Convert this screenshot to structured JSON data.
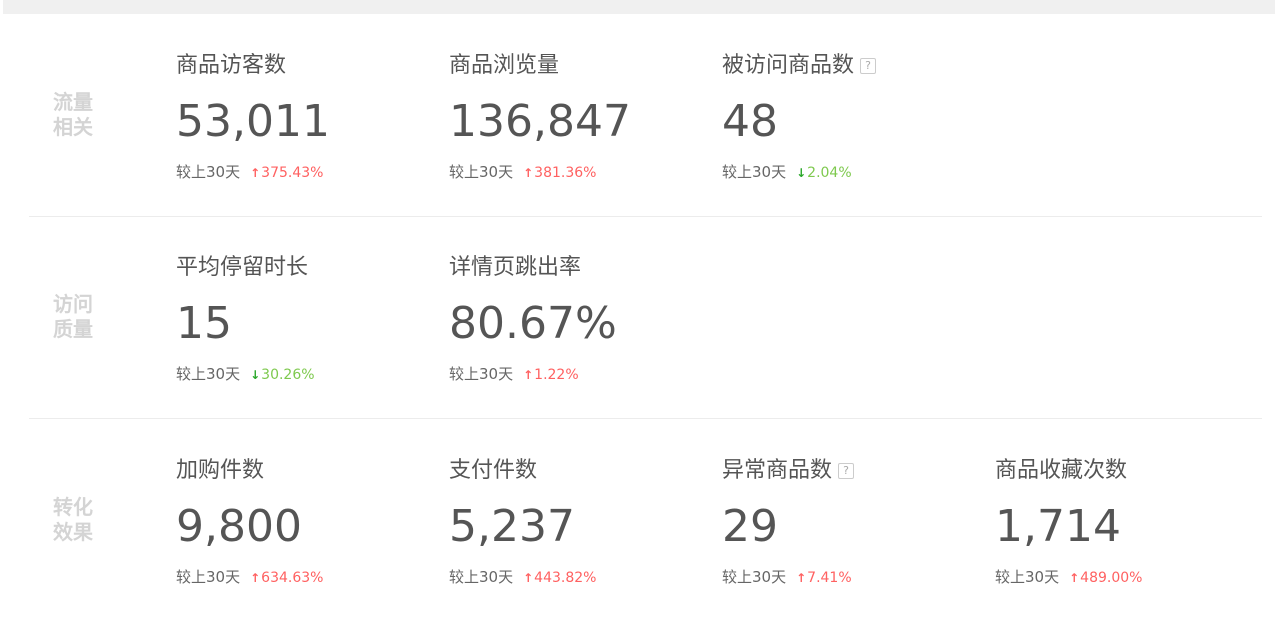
{
  "compare_label": "较上30天",
  "colors": {
    "up": "#ff6161",
    "down": "#7ec94e"
  },
  "sections": [
    {
      "category": [
        "流量",
        "相关"
      ],
      "metrics": [
        {
          "name": "商品访客数",
          "value": "53,011",
          "change": "375.43%",
          "direction": "up",
          "help": false
        },
        {
          "name": "商品浏览量",
          "value": "136,847",
          "change": "381.36%",
          "direction": "up",
          "help": false
        },
        {
          "name": "被访问商品数",
          "value": "48",
          "change": "2.04%",
          "direction": "down",
          "help": true
        }
      ]
    },
    {
      "category": [
        "访问",
        "质量"
      ],
      "metrics": [
        {
          "name": "平均停留时长",
          "value": "15",
          "change": "30.26%",
          "direction": "down",
          "help": false
        },
        {
          "name": "详情页跳出率",
          "value": "80.67%",
          "change": "1.22%",
          "direction": "up",
          "help": false
        }
      ]
    },
    {
      "category": [
        "转化",
        "效果"
      ],
      "metrics": [
        {
          "name": "加购件数",
          "value": "9,800",
          "change": "634.63%",
          "direction": "up",
          "help": false
        },
        {
          "name": "支付件数",
          "value": "5,237",
          "change": "443.82%",
          "direction": "up",
          "help": false
        },
        {
          "name": "异常商品数",
          "value": "29",
          "change": "7.41%",
          "direction": "up",
          "help": true
        },
        {
          "name": "商品收藏次数",
          "value": "1,714",
          "change": "489.00%",
          "direction": "up",
          "help": false
        }
      ]
    }
  ]
}
